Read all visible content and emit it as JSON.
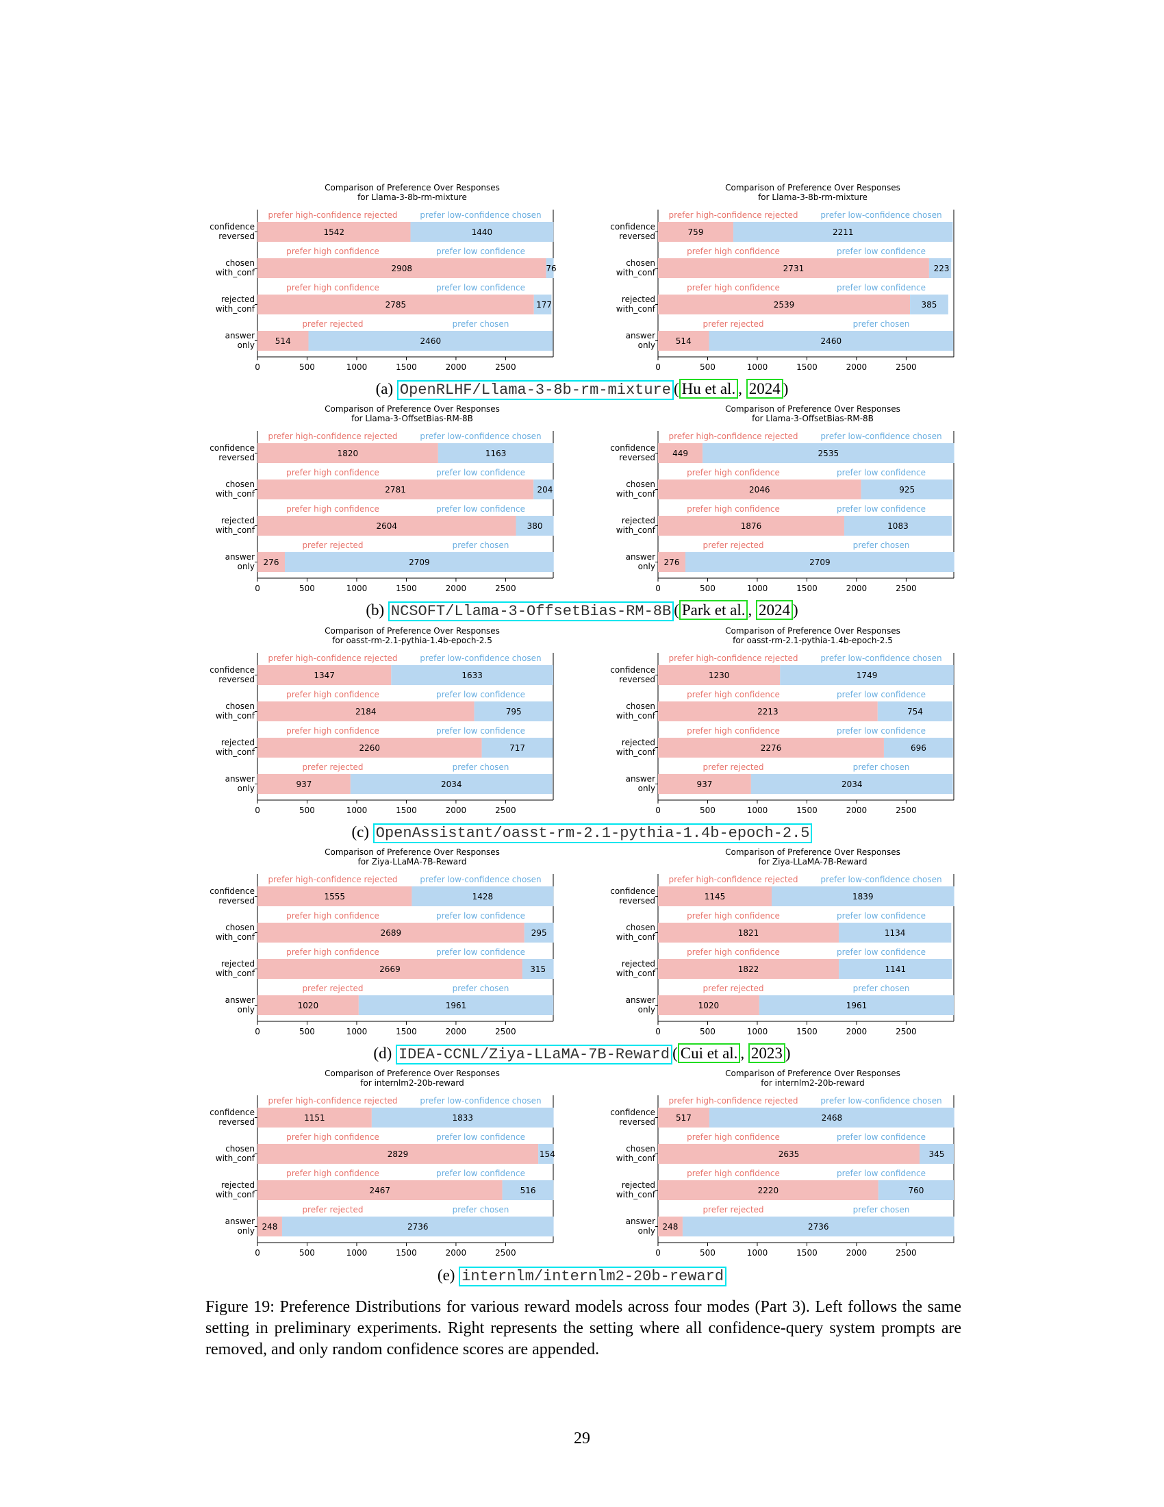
{
  "labels": {
    "row_labels": [
      [
        "confidence",
        "reversed"
      ],
      [
        "chosen",
        "with_conf"
      ],
      [
        "rejected",
        "with_conf"
      ],
      [
        "answer",
        "only"
      ]
    ],
    "top_labels": [
      [
        "prefer high-confidence rejected",
        "prefer low-confidence chosen"
      ],
      [
        "prefer high confidence",
        "prefer low confidence"
      ],
      [
        "prefer high confidence",
        "prefer low confidence"
      ],
      [
        "prefer rejected",
        "prefer chosen"
      ]
    ],
    "title_line1": "Comparison of Preference Over Responses",
    "xticks": [
      0,
      500,
      1000,
      1500,
      2000,
      2500
    ]
  },
  "colors": {
    "red": "#f4bcba",
    "blue": "#b8d7f1",
    "red_text": "#e8746c",
    "blue_text": "#6aaee0"
  },
  "panels": [
    {
      "letter": "(a)",
      "code": "OpenRLHF/Llama-3-8b-rm-mixture",
      "cite_open": "(",
      "cite_author": "Hu et al.",
      "cite_year": "2024",
      "cite_close": ")",
      "left": {
        "title": "for Llama-3-8b-rm-mixture",
        "values": [
          [
            1542,
            1440
          ],
          [
            2908,
            76
          ],
          [
            2785,
            177
          ],
          [
            514,
            2460
          ]
        ]
      },
      "right": {
        "title": "for Llama-3-8b-rm-mixture",
        "values": [
          [
            759,
            2211
          ],
          [
            2731,
            223
          ],
          [
            2539,
            385
          ],
          [
            514,
            2460
          ]
        ]
      }
    },
    {
      "letter": "(b)",
      "code": "NCSOFT/Llama-3-OffsetBias-RM-8B",
      "cite_open": "(",
      "cite_author": "Park et al.",
      "cite_year": "2024",
      "cite_close": ")",
      "left": {
        "title": "for Llama-3-OffsetBias-RM-8B",
        "values": [
          [
            1820,
            1163
          ],
          [
            2781,
            204
          ],
          [
            2604,
            380
          ],
          [
            276,
            2709
          ]
        ]
      },
      "right": {
        "title": "for Llama-3-OffsetBias-RM-8B",
        "values": [
          [
            449,
            2535
          ],
          [
            2046,
            925
          ],
          [
            1876,
            1083
          ],
          [
            276,
            2709
          ]
        ]
      }
    },
    {
      "letter": "(c)",
      "code": "OpenAssistant/oasst-rm-2.1-pythia-1.4b-epoch-2.5",
      "cite_open": "",
      "cite_author": "",
      "cite_year": "",
      "cite_close": "",
      "left": {
        "title": "for oasst-rm-2.1-pythia-1.4b-epoch-2.5",
        "values": [
          [
            1347,
            1633
          ],
          [
            2184,
            795
          ],
          [
            2260,
            717
          ],
          [
            937,
            2034
          ]
        ]
      },
      "right": {
        "title": "for oasst-rm-2.1-pythia-1.4b-epoch-2.5",
        "values": [
          [
            1230,
            1749
          ],
          [
            2213,
            754
          ],
          [
            2276,
            696
          ],
          [
            937,
            2034
          ]
        ]
      }
    },
    {
      "letter": "(d)",
      "code": "IDEA-CCNL/Ziya-LLaMA-7B-Reward",
      "cite_open": "(",
      "cite_author": "Cui et al.",
      "cite_year": "2023",
      "cite_close": ")",
      "left": {
        "title": "for Ziya-LLaMA-7B-Reward",
        "values": [
          [
            1555,
            1428
          ],
          [
            2689,
            295
          ],
          [
            2669,
            315
          ],
          [
            1020,
            1961
          ]
        ]
      },
      "right": {
        "title": "for Ziya-LLaMA-7B-Reward",
        "values": [
          [
            1145,
            1839
          ],
          [
            1821,
            1134
          ],
          [
            1822,
            1141
          ],
          [
            1020,
            1961
          ]
        ]
      }
    },
    {
      "letter": "(e)",
      "code": "internlm/internlm2-20b-reward",
      "cite_open": "",
      "cite_author": "",
      "cite_year": "",
      "cite_close": "",
      "left": {
        "title": "for internlm2-20b-reward",
        "values": [
          [
            1151,
            1833
          ],
          [
            2829,
            154
          ],
          [
            2467,
            516
          ],
          [
            248,
            2736
          ]
        ]
      },
      "right": {
        "title": "for internlm2-20b-reward",
        "values": [
          [
            517,
            2468
          ],
          [
            2635,
            345
          ],
          [
            2220,
            760
          ],
          [
            248,
            2736
          ]
        ]
      }
    }
  ],
  "chart_data": [
    {
      "type": "bar",
      "orientation": "horizontal",
      "stacked": true,
      "title": "Comparison of Preference Over Responses for Llama-3-8b-rm-mixture",
      "categories": [
        "confidence reversed",
        "chosen with_conf",
        "rejected with_conf",
        "answer only"
      ],
      "series": [
        {
          "values": [
            1542,
            2908,
            2785,
            514
          ]
        },
        {
          "values": [
            1440,
            76,
            177,
            2460
          ]
        }
      ],
      "xlim": [
        0,
        3000
      ]
    },
    {
      "type": "bar",
      "orientation": "horizontal",
      "stacked": true,
      "title": "Comparison of Preference Over Responses for Llama-3-8b-rm-mixture",
      "categories": [
        "confidence reversed",
        "chosen with_conf",
        "rejected with_conf",
        "answer only"
      ],
      "series": [
        {
          "values": [
            759,
            2731,
            2539,
            514
          ]
        },
        {
          "values": [
            2211,
            223,
            385,
            2460
          ]
        }
      ],
      "xlim": [
        0,
        3000
      ]
    },
    {
      "type": "bar",
      "orientation": "horizontal",
      "stacked": true,
      "title": "Comparison of Preference Over Responses for Llama-3-OffsetBias-RM-8B",
      "categories": [
        "confidence reversed",
        "chosen with_conf",
        "rejected with_conf",
        "answer only"
      ],
      "series": [
        {
          "values": [
            1820,
            2781,
            2604,
            276
          ]
        },
        {
          "values": [
            1163,
            204,
            380,
            2709
          ]
        }
      ],
      "xlim": [
        0,
        3000
      ]
    },
    {
      "type": "bar",
      "orientation": "horizontal",
      "stacked": true,
      "title": "Comparison of Preference Over Responses for Llama-3-OffsetBias-RM-8B",
      "categories": [
        "confidence reversed",
        "chosen with_conf",
        "rejected with_conf",
        "answer only"
      ],
      "series": [
        {
          "values": [
            449,
            2046,
            1876,
            276
          ]
        },
        {
          "values": [
            2535,
            925,
            1083,
            2709
          ]
        }
      ],
      "xlim": [
        0,
        3000
      ]
    },
    {
      "type": "bar",
      "orientation": "horizontal",
      "stacked": true,
      "title": "Comparison of Preference Over Responses for oasst-rm-2.1-pythia-1.4b-epoch-2.5",
      "categories": [
        "confidence reversed",
        "chosen with_conf",
        "rejected with_conf",
        "answer only"
      ],
      "series": [
        {
          "values": [
            1347,
            2184,
            2260,
            937
          ]
        },
        {
          "values": [
            1633,
            795,
            717,
            2034
          ]
        }
      ],
      "xlim": [
        0,
        3000
      ]
    },
    {
      "type": "bar",
      "orientation": "horizontal",
      "stacked": true,
      "title": "Comparison of Preference Over Responses for oasst-rm-2.1-pythia-1.4b-epoch-2.5",
      "categories": [
        "confidence reversed",
        "chosen with_conf",
        "rejected with_conf",
        "answer only"
      ],
      "series": [
        {
          "values": [
            1230,
            2213,
            2276,
            937
          ]
        },
        {
          "values": [
            1749,
            754,
            696,
            2034
          ]
        }
      ],
      "xlim": [
        0,
        3000
      ]
    },
    {
      "type": "bar",
      "orientation": "horizontal",
      "stacked": true,
      "title": "Comparison of Preference Over Responses for Ziya-LLaMA-7B-Reward",
      "categories": [
        "confidence reversed",
        "chosen with_conf",
        "rejected with_conf",
        "answer only"
      ],
      "series": [
        {
          "values": [
            1555,
            2689,
            2669,
            1020
          ]
        },
        {
          "values": [
            1428,
            295,
            315,
            1961
          ]
        }
      ],
      "xlim": [
        0,
        3000
      ]
    },
    {
      "type": "bar",
      "orientation": "horizontal",
      "stacked": true,
      "title": "Comparison of Preference Over Responses for Ziya-LLaMA-7B-Reward",
      "categories": [
        "confidence reversed",
        "chosen with_conf",
        "rejected with_conf",
        "answer only"
      ],
      "series": [
        {
          "values": [
            1145,
            1821,
            1822,
            1020
          ]
        },
        {
          "values": [
            1839,
            1134,
            1141,
            1961
          ]
        }
      ],
      "xlim": [
        0,
        3000
      ]
    },
    {
      "type": "bar",
      "orientation": "horizontal",
      "stacked": true,
      "title": "Comparison of Preference Over Responses for internlm2-20b-reward",
      "categories": [
        "confidence reversed",
        "chosen with_conf",
        "rejected with_conf",
        "answer only"
      ],
      "series": [
        {
          "values": [
            1151,
            2829,
            2467,
            248
          ]
        },
        {
          "values": [
            1833,
            154,
            516,
            2736
          ]
        }
      ],
      "xlim": [
        0,
        3000
      ]
    },
    {
      "type": "bar",
      "orientation": "horizontal",
      "stacked": true,
      "title": "Comparison of Preference Over Responses for internlm2-20b-reward",
      "categories": [
        "confidence reversed",
        "chosen with_conf",
        "rejected with_conf",
        "answer only"
      ],
      "series": [
        {
          "values": [
            517,
            2635,
            2220,
            248
          ]
        },
        {
          "values": [
            2468,
            345,
            760,
            2736
          ]
        }
      ],
      "xlim": [
        0,
        3000
      ]
    }
  ],
  "caption": "Figure 19: Preference Distributions for various reward models across four modes (Part 3). Left follows the same setting in preliminary experiments. Right represents the setting where all confidence-query system prompts are removed, and only random confidence scores are appended.",
  "page_number": "29"
}
